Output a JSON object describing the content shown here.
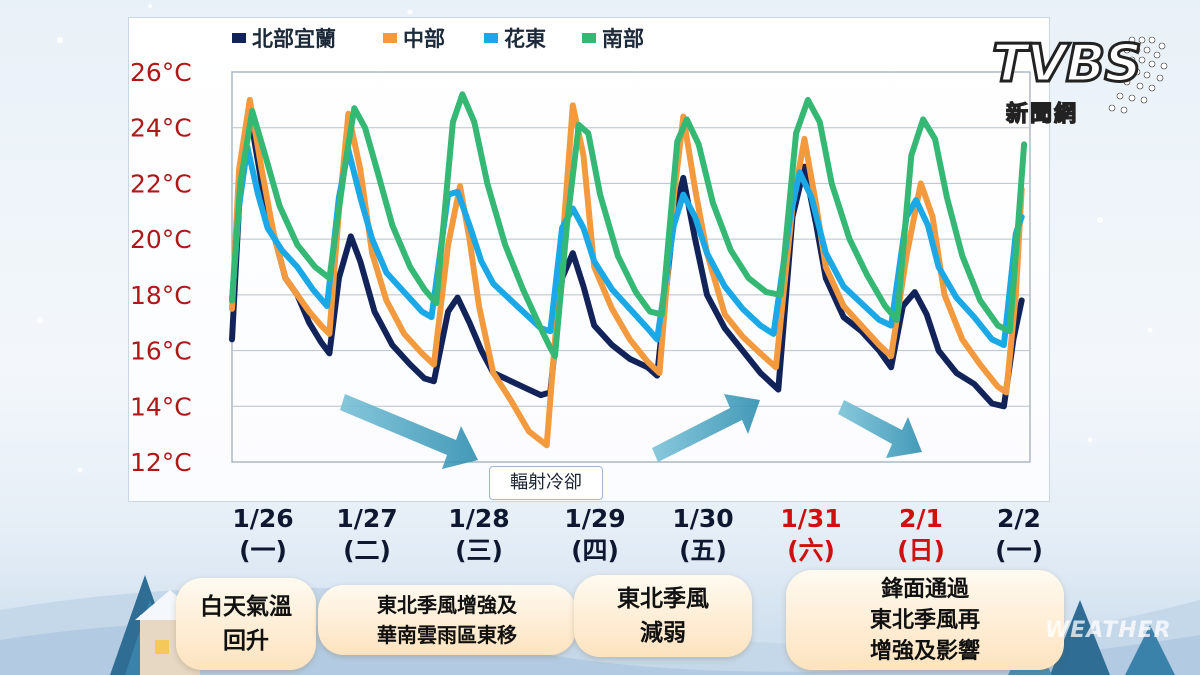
{
  "legend": [
    {
      "label": "北部宜蘭",
      "color": "#12235a"
    },
    {
      "label": "中部",
      "color": "#f39a3f"
    },
    {
      "label": "花東",
      "color": "#1aa8e6"
    },
    {
      "label": "南部",
      "color": "#35b874"
    }
  ],
  "y_ticks": [
    "26°C",
    "24°C",
    "22°C",
    "20°C",
    "18°C",
    "16°C",
    "14°C",
    "12°C"
  ],
  "dates": [
    {
      "date": "1/26",
      "dow": "(一)",
      "highlight": false
    },
    {
      "date": "1/27",
      "dow": "(二)",
      "highlight": false
    },
    {
      "date": "1/28",
      "dow": "(三)",
      "highlight": false
    },
    {
      "date": "1/29",
      "dow": "(四)",
      "highlight": false
    },
    {
      "date": "1/30",
      "dow": "(五)",
      "highlight": false
    },
    {
      "date": "1/31",
      "dow": "(六)",
      "highlight": true
    },
    {
      "date": "2/1",
      "dow": "(日)",
      "highlight": true
    },
    {
      "date": "2/2",
      "dow": "(一)",
      "highlight": false
    }
  ],
  "annotation": "輻射冷卻",
  "pills": [
    {
      "lines": [
        "白天氣溫",
        "回升"
      ]
    },
    {
      "lines": [
        "東北季風增強及",
        "華南雲雨區東移"
      ]
    },
    {
      "lines": [
        "東北季風",
        "減弱"
      ]
    },
    {
      "lines": [
        "鋒面通過",
        "東北季風再",
        "增強及影響"
      ]
    }
  ],
  "logo": {
    "main": "TVBS",
    "sub": "新聞網"
  },
  "watermark": "WEATHER",
  "chart_data": {
    "type": "line",
    "ylim": [
      11.5,
      26.5
    ],
    "x_unit": "day offset from 1/26 00:00",
    "series": [
      {
        "name": "北部宜蘭",
        "color": "#12235a",
        "points": [
          [
            0.0,
            16.4
          ],
          [
            0.06,
            21.2
          ],
          [
            0.15,
            24.5
          ],
          [
            0.25,
            22.0
          ],
          [
            0.35,
            20.2
          ],
          [
            0.45,
            18.6
          ],
          [
            0.55,
            18.0
          ],
          [
            0.65,
            17.0
          ],
          [
            0.75,
            16.3
          ],
          [
            0.82,
            15.9
          ],
          [
            0.9,
            18.6
          ],
          [
            1.0,
            20.1
          ],
          [
            1.08,
            19.2
          ],
          [
            1.2,
            17.4
          ],
          [
            1.35,
            16.2
          ],
          [
            1.5,
            15.5
          ],
          [
            1.62,
            15.0
          ],
          [
            1.7,
            14.9
          ],
          [
            1.82,
            17.4
          ],
          [
            1.9,
            17.9
          ],
          [
            2.0,
            17.0
          ],
          [
            2.1,
            16.0
          ],
          [
            2.2,
            15.2
          ],
          [
            2.3,
            15.0
          ],
          [
            2.45,
            14.7
          ],
          [
            2.6,
            14.4
          ],
          [
            2.68,
            14.5
          ],
          [
            2.78,
            18.6
          ],
          [
            2.87,
            19.5
          ],
          [
            2.96,
            18.3
          ],
          [
            3.05,
            16.9
          ],
          [
            3.2,
            16.2
          ],
          [
            3.35,
            15.7
          ],
          [
            3.5,
            15.4
          ],
          [
            3.58,
            15.1
          ],
          [
            3.72,
            20.8
          ],
          [
            3.8,
            22.2
          ],
          [
            3.9,
            20.0
          ],
          [
            4.0,
            18.0
          ],
          [
            4.15,
            16.8
          ],
          [
            4.3,
            16.0
          ],
          [
            4.45,
            15.2
          ],
          [
            4.55,
            14.8
          ],
          [
            4.6,
            14.6
          ],
          [
            4.72,
            20.8
          ],
          [
            4.82,
            22.6
          ],
          [
            4.92,
            20.5
          ],
          [
            5.0,
            18.6
          ],
          [
            5.15,
            17.2
          ],
          [
            5.3,
            16.7
          ],
          [
            5.45,
            16.0
          ],
          [
            5.55,
            15.4
          ],
          [
            5.65,
            17.6
          ],
          [
            5.75,
            18.1
          ],
          [
            5.85,
            17.3
          ],
          [
            5.95,
            16.0
          ],
          [
            6.1,
            15.2
          ],
          [
            6.25,
            14.8
          ],
          [
            6.4,
            14.1
          ],
          [
            6.5,
            14.0
          ],
          [
            6.58,
            16.4
          ],
          [
            6.65,
            17.8
          ]
        ]
      },
      {
        "name": "中部",
        "color": "#f39a3f",
        "points": [
          [
            0.0,
            17.5
          ],
          [
            0.06,
            22.5
          ],
          [
            0.15,
            25.0
          ],
          [
            0.25,
            22.5
          ],
          [
            0.35,
            20.2
          ],
          [
            0.45,
            18.6
          ],
          [
            0.55,
            18.0
          ],
          [
            0.65,
            17.4
          ],
          [
            0.75,
            16.9
          ],
          [
            0.82,
            16.6
          ],
          [
            0.9,
            21.0
          ],
          [
            0.98,
            24.5
          ],
          [
            1.08,
            22.5
          ],
          [
            1.18,
            19.5
          ],
          [
            1.3,
            17.8
          ],
          [
            1.45,
            16.6
          ],
          [
            1.6,
            15.9
          ],
          [
            1.7,
            15.5
          ],
          [
            1.82,
            19.8
          ],
          [
            1.92,
            21.9
          ],
          [
            2.0,
            20.0
          ],
          [
            2.08,
            17.6
          ],
          [
            2.2,
            15.2
          ],
          [
            2.35,
            14.2
          ],
          [
            2.5,
            13.1
          ],
          [
            2.65,
            12.6
          ],
          [
            2.75,
            18.0
          ],
          [
            2.87,
            24.8
          ],
          [
            2.96,
            23.0
          ],
          [
            3.05,
            19.0
          ],
          [
            3.2,
            17.5
          ],
          [
            3.35,
            16.4
          ],
          [
            3.5,
            15.6
          ],
          [
            3.6,
            15.2
          ],
          [
            3.72,
            21.5
          ],
          [
            3.8,
            24.4
          ],
          [
            3.9,
            21.8
          ],
          [
            4.0,
            19.5
          ],
          [
            4.15,
            17.3
          ],
          [
            4.3,
            16.5
          ],
          [
            4.45,
            15.9
          ],
          [
            4.58,
            15.4
          ],
          [
            4.72,
            21.2
          ],
          [
            4.82,
            23.6
          ],
          [
            4.92,
            21.2
          ],
          [
            5.0,
            19.0
          ],
          [
            5.15,
            17.6
          ],
          [
            5.3,
            16.9
          ],
          [
            5.45,
            16.2
          ],
          [
            5.55,
            15.8
          ],
          [
            5.68,
            19.4
          ],
          [
            5.8,
            22.0
          ],
          [
            5.9,
            20.8
          ],
          [
            6.0,
            18.0
          ],
          [
            6.15,
            16.4
          ],
          [
            6.3,
            15.5
          ],
          [
            6.45,
            14.7
          ],
          [
            6.52,
            14.5
          ],
          [
            6.6,
            18.0
          ],
          [
            6.65,
            21.8
          ]
        ]
      },
      {
        "name": "花東",
        "color": "#1aa8e6",
        "points": [
          [
            0.0,
            17.8
          ],
          [
            0.06,
            21.2
          ],
          [
            0.13,
            23.3
          ],
          [
            0.22,
            21.6
          ],
          [
            0.3,
            20.4
          ],
          [
            0.42,
            19.6
          ],
          [
            0.55,
            19.0
          ],
          [
            0.68,
            18.2
          ],
          [
            0.8,
            17.6
          ],
          [
            0.9,
            21.5
          ],
          [
            0.98,
            23.2
          ],
          [
            1.08,
            21.5
          ],
          [
            1.18,
            20.0
          ],
          [
            1.3,
            18.8
          ],
          [
            1.45,
            18.1
          ],
          [
            1.6,
            17.4
          ],
          [
            1.68,
            17.2
          ],
          [
            1.82,
            21.6
          ],
          [
            1.9,
            21.7
          ],
          [
            2.0,
            20.5
          ],
          [
            2.1,
            19.2
          ],
          [
            2.2,
            18.4
          ],
          [
            2.35,
            17.8
          ],
          [
            2.5,
            17.2
          ],
          [
            2.6,
            16.8
          ],
          [
            2.68,
            16.7
          ],
          [
            2.78,
            20.4
          ],
          [
            2.87,
            21.1
          ],
          [
            2.96,
            20.4
          ],
          [
            3.05,
            19.2
          ],
          [
            3.2,
            18.2
          ],
          [
            3.35,
            17.5
          ],
          [
            3.5,
            16.8
          ],
          [
            3.58,
            16.4
          ],
          [
            3.72,
            20.5
          ],
          [
            3.8,
            21.6
          ],
          [
            3.9,
            20.8
          ],
          [
            4.0,
            19.5
          ],
          [
            4.15,
            18.3
          ],
          [
            4.3,
            17.5
          ],
          [
            4.45,
            16.9
          ],
          [
            4.56,
            16.6
          ],
          [
            4.7,
            20.8
          ],
          [
            4.78,
            22.4
          ],
          [
            4.88,
            21.5
          ],
          [
            5.0,
            19.5
          ],
          [
            5.15,
            18.3
          ],
          [
            5.3,
            17.7
          ],
          [
            5.45,
            17.1
          ],
          [
            5.55,
            16.9
          ],
          [
            5.68,
            20.8
          ],
          [
            5.76,
            21.4
          ],
          [
            5.86,
            20.5
          ],
          [
            5.95,
            19.0
          ],
          [
            6.1,
            17.9
          ],
          [
            6.25,
            17.2
          ],
          [
            6.4,
            16.4
          ],
          [
            6.5,
            16.2
          ],
          [
            6.6,
            20.2
          ],
          [
            6.65,
            20.8
          ]
        ]
      },
      {
        "name": "南部",
        "color": "#35b874",
        "points": [
          [
            0.0,
            17.8
          ],
          [
            0.07,
            22.0
          ],
          [
            0.17,
            24.6
          ],
          [
            0.28,
            23.0
          ],
          [
            0.4,
            21.2
          ],
          [
            0.55,
            19.8
          ],
          [
            0.7,
            19.0
          ],
          [
            0.82,
            18.6
          ],
          [
            0.95,
            22.6
          ],
          [
            1.03,
            24.7
          ],
          [
            1.12,
            24.0
          ],
          [
            1.22,
            22.5
          ],
          [
            1.35,
            20.5
          ],
          [
            1.5,
            19.0
          ],
          [
            1.62,
            18.2
          ],
          [
            1.72,
            17.7
          ],
          [
            1.86,
            24.2
          ],
          [
            1.94,
            25.2
          ],
          [
            2.04,
            24.2
          ],
          [
            2.15,
            22.0
          ],
          [
            2.3,
            19.8
          ],
          [
            2.45,
            18.2
          ],
          [
            2.6,
            16.8
          ],
          [
            2.68,
            16.1
          ],
          [
            2.72,
            15.8
          ],
          [
            2.82,
            20.5
          ],
          [
            2.92,
            24.1
          ],
          [
            3.0,
            23.8
          ],
          [
            3.1,
            21.6
          ],
          [
            3.25,
            19.4
          ],
          [
            3.4,
            18.1
          ],
          [
            3.52,
            17.4
          ],
          [
            3.62,
            17.3
          ],
          [
            3.75,
            23.5
          ],
          [
            3.83,
            24.3
          ],
          [
            3.93,
            23.4
          ],
          [
            4.05,
            21.3
          ],
          [
            4.2,
            19.6
          ],
          [
            4.35,
            18.6
          ],
          [
            4.5,
            18.1
          ],
          [
            4.62,
            18.0
          ],
          [
            4.75,
            23.8
          ],
          [
            4.85,
            25.0
          ],
          [
            4.95,
            24.2
          ],
          [
            5.05,
            22.0
          ],
          [
            5.2,
            20.0
          ],
          [
            5.35,
            18.7
          ],
          [
            5.5,
            17.6
          ],
          [
            5.6,
            17.1
          ],
          [
            5.72,
            23.0
          ],
          [
            5.82,
            24.3
          ],
          [
            5.92,
            23.6
          ],
          [
            6.02,
            21.5
          ],
          [
            6.15,
            19.4
          ],
          [
            6.3,
            17.8
          ],
          [
            6.45,
            16.9
          ],
          [
            6.55,
            16.7
          ],
          [
            6.62,
            20.5
          ],
          [
            6.67,
            23.4
          ]
        ]
      }
    ]
  }
}
